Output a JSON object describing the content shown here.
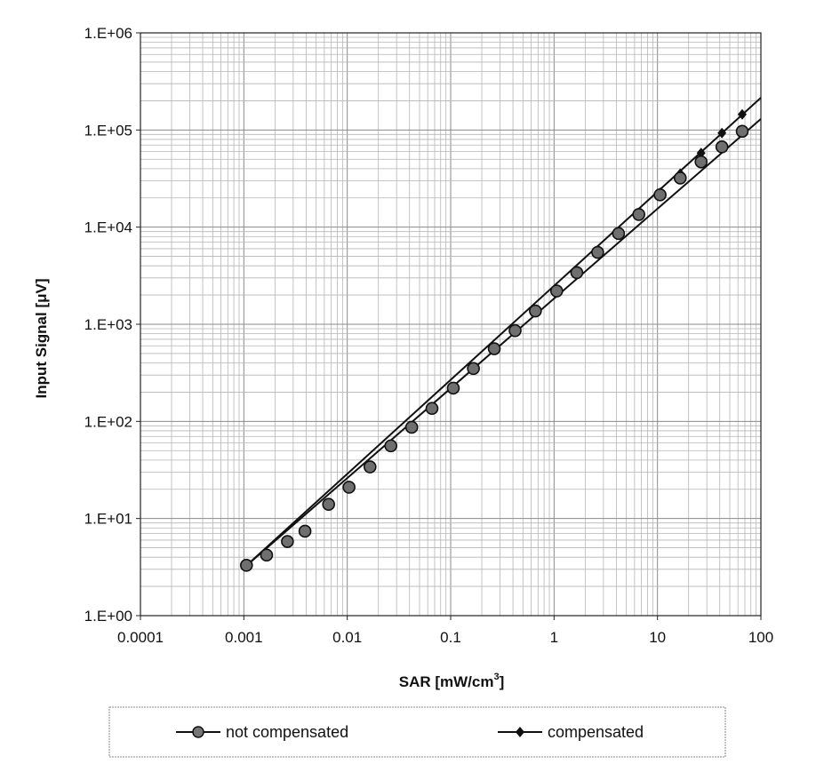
{
  "chart_data": {
    "type": "line",
    "title": "",
    "xlabel": "SAR [mW/cm",
    "xlabel_sup": "3",
    "xlabel_end": "]",
    "ylabel": "Input Signal [μV]",
    "xscale": "log",
    "yscale": "log",
    "xlim": [
      0.0001,
      100
    ],
    "ylim": [
      1,
      1000000
    ],
    "x_ticks": [
      0.0001,
      0.001,
      0.01,
      0.1,
      1,
      10,
      100
    ],
    "x_tick_labels": [
      "0.0001",
      "0.001",
      "0.01",
      "0.1",
      "1",
      "10",
      "100"
    ],
    "y_ticks": [
      1,
      10,
      100,
      1000,
      10000,
      100000,
      1000000
    ],
    "y_tick_labels": [
      "1.E+00",
      "1.E+01",
      "1.E+02",
      "1.E+03",
      "1.E+04",
      "1.E+05",
      "1.E+06"
    ],
    "grid": true,
    "legend_position": "bottom",
    "series": [
      {
        "name": "not compensated",
        "marker": "circle",
        "x": [
          0.00106,
          0.00166,
          0.00264,
          0.0039,
          0.0066,
          0.0104,
          0.0166,
          0.0264,
          0.042,
          0.066,
          0.106,
          0.166,
          0.264,
          0.42,
          0.66,
          1.06,
          1.66,
          2.64,
          4.2,
          6.6,
          10.6,
          16.6,
          26.4,
          42,
          66
        ],
        "y": [
          3.3,
          4.2,
          5.8,
          7.4,
          14,
          21,
          34,
          56,
          87,
          136,
          220,
          350,
          560,
          860,
          1370,
          2200,
          3400,
          5500,
          8600,
          13500,
          21500,
          32000,
          47000,
          67000,
          97000
        ]
      },
      {
        "name": "compensated",
        "marker": "diamond",
        "x": [
          0.00106,
          0.00166,
          0.00264,
          0.0039,
          0.0066,
          0.0104,
          0.0166,
          0.0264,
          0.042,
          0.066,
          0.106,
          0.166,
          0.264,
          0.42,
          0.66,
          1.06,
          1.66,
          2.64,
          4.2,
          6.6,
          10.6,
          16.6,
          26.4,
          42,
          66
        ],
        "y": [
          3.3,
          4.2,
          5.8,
          7.4,
          14,
          21,
          34,
          56,
          87,
          136,
          220,
          350,
          560,
          860,
          1370,
          2200,
          3400,
          5500,
          8700,
          14000,
          22500,
          35500,
          58000,
          93000,
          145000
        ]
      }
    ],
    "fit_lines": [
      {
        "series": "not compensated",
        "x": [
          0.001,
          100
        ],
        "y": [
          3.1,
          130000
        ]
      },
      {
        "series": "compensated",
        "x": [
          0.001,
          100
        ],
        "y": [
          3.1,
          215000
        ]
      }
    ]
  }
}
